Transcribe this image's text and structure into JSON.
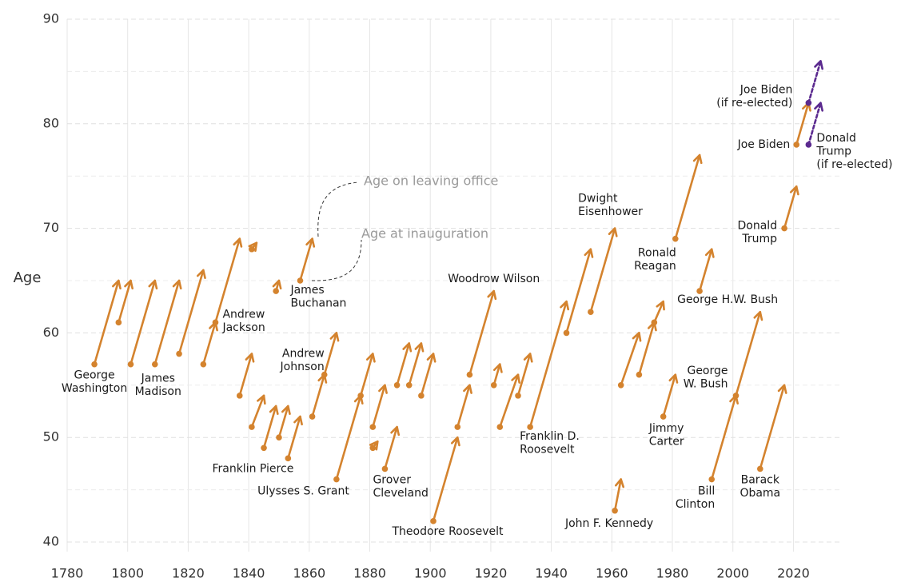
{
  "chart_data": {
    "type": "arrow",
    "y_label": "Age",
    "xlim": [
      1780,
      2036
    ],
    "ylim": [
      40,
      90
    ],
    "xticks": [
      1780,
      1800,
      1820,
      1840,
      1860,
      1880,
      1900,
      1920,
      1940,
      1960,
      1980,
      2000,
      2020
    ],
    "yticks": [
      40,
      50,
      60,
      70,
      80,
      90
    ],
    "grid": true,
    "annotations": [
      "Age on leaving office",
      "Age at inauguration"
    ],
    "series": [
      {
        "color": "#d4832e",
        "style": "solid",
        "arrows": [
          {
            "x": [
              1789,
              1797
            ],
            "y": [
              57,
              65
            ],
            "label": [
              "George",
              "Washington"
            ]
          },
          {
            "x": [
              1797,
              1801
            ],
            "y": [
              61,
              65
            ]
          },
          {
            "x": [
              1801,
              1809
            ],
            "y": [
              57,
              65
            ]
          },
          {
            "x": [
              1809,
              1817
            ],
            "y": [
              57,
              65
            ],
            "label": [
              "James",
              "Madison"
            ]
          },
          {
            "x": [
              1817,
              1825
            ],
            "y": [
              58,
              66
            ]
          },
          {
            "x": [
              1825,
              1829
            ],
            "y": [
              57,
              61
            ]
          },
          {
            "x": [
              1829,
              1837
            ],
            "y": [
              61,
              69
            ],
            "label": [
              "Andrew",
              "Jackson"
            ]
          },
          {
            "x": [
              1837,
              1841
            ],
            "y": [
              54,
              58
            ]
          },
          {
            "x": [
              1841,
              1841
            ],
            "y": [
              68,
              68
            ]
          },
          {
            "x": [
              1841,
              1845
            ],
            "y": [
              51,
              54
            ]
          },
          {
            "x": [
              1845,
              1849
            ],
            "y": [
              49,
              53
            ]
          },
          {
            "x": [
              1849,
              1850
            ],
            "y": [
              64,
              65
            ]
          },
          {
            "x": [
              1850,
              1853
            ],
            "y": [
              50,
              53
            ]
          },
          {
            "x": [
              1853,
              1857
            ],
            "y": [
              48,
              52
            ],
            "label": [
              "Franklin Pierce"
            ]
          },
          {
            "x": [
              1857,
              1861
            ],
            "y": [
              65,
              69
            ],
            "label": [
              "James",
              "Buchanan"
            ]
          },
          {
            "x": [
              1861,
              1865
            ],
            "y": [
              52,
              56
            ]
          },
          {
            "x": [
              1865,
              1869
            ],
            "y": [
              56,
              60
            ],
            "label": [
              "Andrew",
              "Johnson"
            ]
          },
          {
            "x": [
              1869,
              1877
            ],
            "y": [
              46,
              54
            ],
            "label": [
              "Ulysses S. Grant"
            ]
          },
          {
            "x": [
              1877,
              1881
            ],
            "y": [
              54,
              58
            ]
          },
          {
            "x": [
              1881,
              1881
            ],
            "y": [
              49,
              49
            ]
          },
          {
            "x": [
              1881,
              1885
            ],
            "y": [
              51,
              55
            ]
          },
          {
            "x": [
              1885,
              1889
            ],
            "y": [
              47,
              51
            ],
            "label": [
              "Grover",
              "Cleveland"
            ]
          },
          {
            "x": [
              1889,
              1893
            ],
            "y": [
              55,
              59
            ]
          },
          {
            "x": [
              1893,
              1897
            ],
            "y": [
              55,
              59
            ]
          },
          {
            "x": [
              1897,
              1901
            ],
            "y": [
              54,
              58
            ]
          },
          {
            "x": [
              1901,
              1909
            ],
            "y": [
              42,
              50
            ],
            "label": [
              "Theodore Roosevelt"
            ]
          },
          {
            "x": [
              1909,
              1913
            ],
            "y": [
              51,
              55
            ]
          },
          {
            "x": [
              1913,
              1921
            ],
            "y": [
              56,
              64
            ],
            "label": [
              "Woodrow Wilson"
            ]
          },
          {
            "x": [
              1921,
              1923
            ],
            "y": [
              55,
              57
            ]
          },
          {
            "x": [
              1923,
              1929
            ],
            "y": [
              51,
              56
            ]
          },
          {
            "x": [
              1929,
              1933
            ],
            "y": [
              54,
              58
            ]
          },
          {
            "x": [
              1933,
              1945
            ],
            "y": [
              51,
              63
            ],
            "label": [
              "Franklin D.",
              "Roosevelt"
            ]
          },
          {
            "x": [
              1945,
              1953
            ],
            "y": [
              60,
              68
            ]
          },
          {
            "x": [
              1953,
              1961
            ],
            "y": [
              62,
              70
            ],
            "label": [
              "Dwight",
              "Eisenhower"
            ]
          },
          {
            "x": [
              1961,
              1963
            ],
            "y": [
              43,
              46
            ],
            "label": [
              "John F. Kennedy"
            ]
          },
          {
            "x": [
              1963,
              1969
            ],
            "y": [
              55,
              60
            ]
          },
          {
            "x": [
              1969,
              1974
            ],
            "y": [
              56,
              61
            ]
          },
          {
            "x": [
              1974,
              1977
            ],
            "y": [
              61,
              63
            ]
          },
          {
            "x": [
              1977,
              1981
            ],
            "y": [
              52,
              56
            ],
            "label": [
              "Jimmy",
              "Carter"
            ]
          },
          {
            "x": [
              1981,
              1989
            ],
            "y": [
              69,
              77
            ],
            "label": [
              "Ronald",
              "Reagan"
            ]
          },
          {
            "x": [
              1989,
              1993
            ],
            "y": [
              64,
              68
            ],
            "label": [
              "George H.W. Bush"
            ]
          },
          {
            "x": [
              1993,
              2001
            ],
            "y": [
              46,
              54
            ],
            "label": [
              "Bill",
              "Clinton"
            ]
          },
          {
            "x": [
              2001,
              2009
            ],
            "y": [
              54,
              62
            ],
            "label": [
              "George",
              "W. Bush"
            ]
          },
          {
            "x": [
              2009,
              2017
            ],
            "y": [
              47,
              55
            ],
            "label": [
              "Barack",
              "Obama"
            ]
          },
          {
            "x": [
              2017,
              2021
            ],
            "y": [
              70,
              74
            ],
            "label": [
              "Donald",
              "Trump"
            ]
          },
          {
            "x": [
              2021,
              2025
            ],
            "y": [
              78,
              82
            ],
            "label": [
              "Joe Biden"
            ]
          }
        ]
      },
      {
        "color": "#5b2a8f",
        "style": "dotted",
        "arrows": [
          {
            "x": [
              2025,
              2029
            ],
            "y": [
              82,
              86
            ],
            "label": [
              "Joe Biden",
              "(if re-elected)"
            ]
          },
          {
            "x": [
              2025,
              2029
            ],
            "y": [
              78,
              82
            ],
            "label": [
              "Donald",
              "Trump",
              "(if re-elected)"
            ]
          }
        ]
      }
    ]
  }
}
